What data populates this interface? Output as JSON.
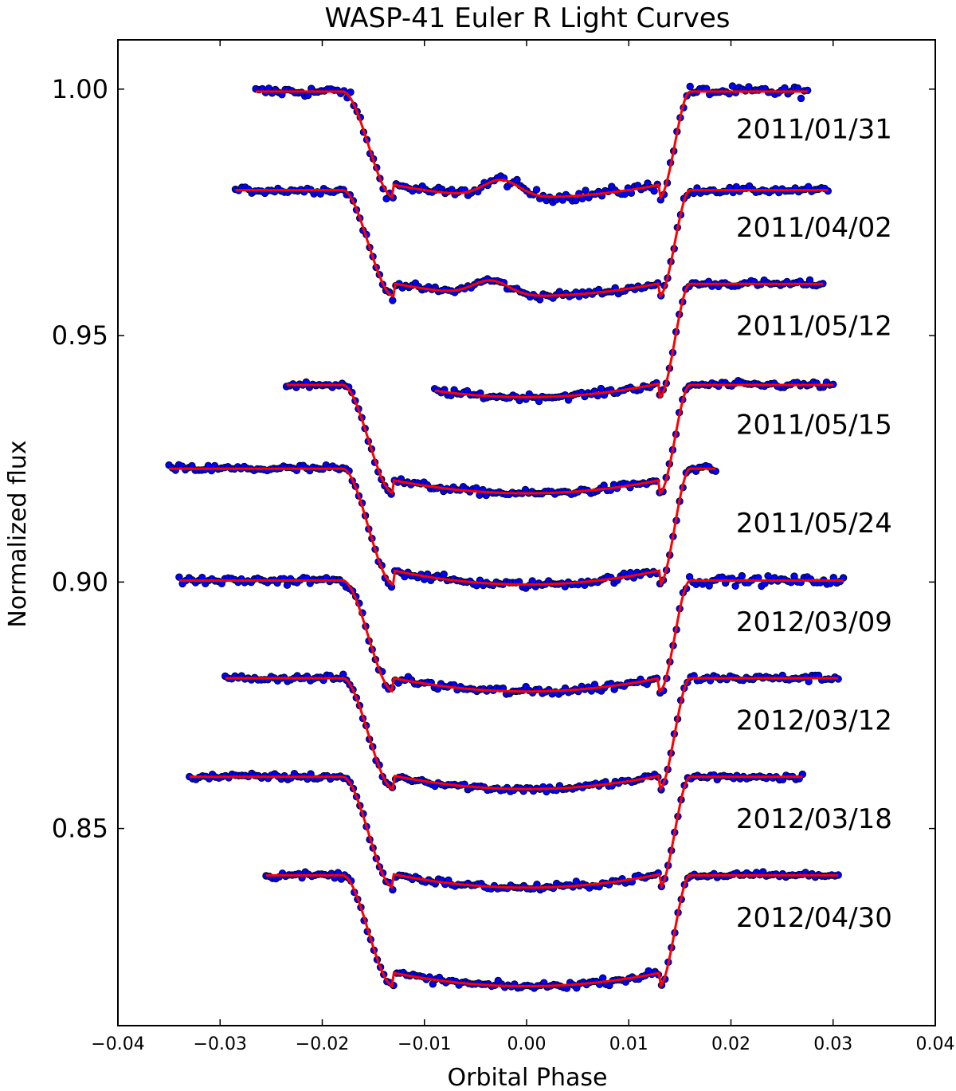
{
  "chart_data": {
    "type": "scatter",
    "title": "WASP-41 Euler R Light Curves",
    "xlabel": "Orbital Phase",
    "ylabel": "Normalized flux",
    "xlim": [
      -0.04,
      0.04
    ],
    "ylim": [
      0.81,
      1.01
    ],
    "x_ticks": [
      {
        "value": -0.04,
        "label": "−0.04"
      },
      {
        "value": -0.03,
        "label": "−0.03"
      },
      {
        "value": -0.02,
        "label": "−0.02"
      },
      {
        "value": -0.01,
        "label": "−0.01"
      },
      {
        "value": 0.0,
        "label": "0.00"
      },
      {
        "value": 0.01,
        "label": "0.01"
      },
      {
        "value": 0.02,
        "label": "0.02"
      },
      {
        "value": 0.03,
        "label": "0.03"
      },
      {
        "value": 0.04,
        "label": "0.04"
      }
    ],
    "y_ticks": [
      {
        "value": 1.0,
        "label": "1.00"
      },
      {
        "value": 0.95,
        "label": "0.95"
      },
      {
        "value": 0.9,
        "label": "0.90"
      },
      {
        "value": 0.85,
        "label": "0.85"
      }
    ],
    "grid": false,
    "marker_color": "#0000ff",
    "marker_edge": "#000000",
    "model_color": "#ff0000",
    "label_x": 0.0205,
    "series": [
      {
        "name": "2011/01/31",
        "label_y": 0.992,
        "x_start": -0.0265,
        "x_end": 0.0275,
        "baseline": 0.9995,
        "depth": 0.0215,
        "spots": [
          {
            "x": -0.0025,
            "amp": 0.0035,
            "w": 0.0025
          }
        ],
        "scatter": 0.0011
      },
      {
        "name": "2011/04/02",
        "label_y": 0.972,
        "x_start": -0.0285,
        "x_end": 0.0295,
        "baseline": 0.9795,
        "depth": 0.0215,
        "spots": [
          {
            "x": -0.0035,
            "amp": 0.003,
            "w": 0.0025
          }
        ],
        "scatter": 0.0007
      },
      {
        "name": "2011/05/12",
        "label_y": 0.952,
        "x_start": -0.009,
        "x_end": 0.029,
        "baseline": 0.9605,
        "depth": 0.023,
        "spots": [],
        "scatter": 0.0007
      },
      {
        "name": "2011/05/15",
        "label_y": 0.932,
        "x_start": -0.0235,
        "x_end": 0.03,
        "baseline": 0.94,
        "depth": 0.022,
        "spots": [],
        "scatter": 0.0007
      },
      {
        "name": "2011/05/24",
        "label_y": 0.912,
        "x_start": -0.035,
        "x_end": 0.0185,
        "baseline": 0.923,
        "depth": 0.0235,
        "spots": [],
        "scatter": 0.0008
      },
      {
        "name": "2012/03/09",
        "label_y": 0.892,
        "x_start": -0.034,
        "x_end": 0.031,
        "baseline": 0.9003,
        "depth": 0.0225,
        "spots": [],
        "scatter": 0.0009
      },
      {
        "name": "2012/03/12",
        "label_y": 0.872,
        "x_start": -0.0295,
        "x_end": 0.0305,
        "baseline": 0.8805,
        "depth": 0.0225,
        "spots": [],
        "scatter": 0.0007
      },
      {
        "name": "2012/03/18",
        "label_y": 0.852,
        "x_start": -0.033,
        "x_end": 0.027,
        "baseline": 0.8605,
        "depth": 0.0225,
        "spots": [],
        "scatter": 0.0007
      },
      {
        "name": "2012/04/30",
        "label_y": 0.832,
        "x_start": -0.0255,
        "x_end": 0.0305,
        "baseline": 0.8405,
        "depth": 0.0225,
        "spots": [],
        "scatter": 0.0007
      }
    ]
  }
}
